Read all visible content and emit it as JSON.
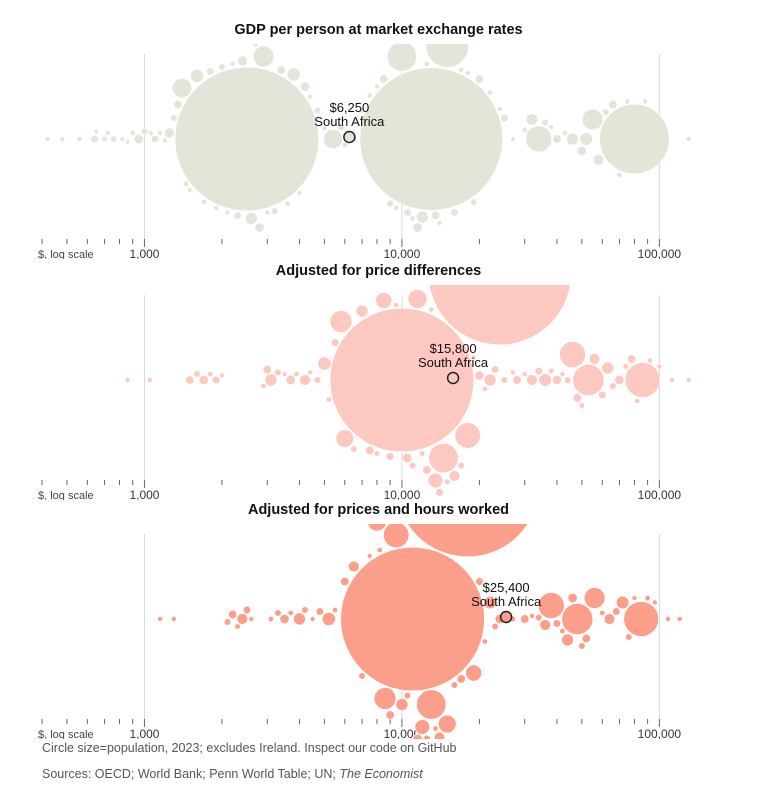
{
  "chart_data": [
    {
      "type": "scatter",
      "title": "GDP per person at market exchange rates",
      "xscale": "log",
      "xlim": [
        400,
        140000
      ],
      "xlabel": "$, log scale",
      "xticks": [
        1000,
        10000,
        100000
      ],
      "xtick_labels": [
        "1,000",
        "10,000",
        "100,000"
      ],
      "color": "#e5e4d9",
      "highlight": {
        "name": "South Africa",
        "value": 6250,
        "label": "$6,250"
      },
      "points": [
        {
          "x": 420,
          "p": 1
        },
        {
          "x": 480,
          "p": 0.5
        },
        {
          "x": 560,
          "p": 2
        },
        {
          "x": 640,
          "p": 4
        },
        {
          "x": 650,
          "p": 1.5
        },
        {
          "x": 700,
          "p": 2
        },
        {
          "x": 720,
          "p": 1
        },
        {
          "x": 760,
          "p": 3
        },
        {
          "x": 820,
          "p": 1
        },
        {
          "x": 860,
          "p": 1.5
        },
        {
          "x": 900,
          "p": 2
        },
        {
          "x": 950,
          "p": 6
        },
        {
          "x": 1000,
          "p": 3
        },
        {
          "x": 1060,
          "p": 1.5
        },
        {
          "x": 1100,
          "p": 4
        },
        {
          "x": 1150,
          "p": 2
        },
        {
          "x": 1200,
          "p": 1
        },
        {
          "x": 1250,
          "p": 7
        },
        {
          "x": 1300,
          "p": 3
        },
        {
          "x": 1350,
          "p": 5
        },
        {
          "x": 1400,
          "p": 26
        },
        {
          "x": 1450,
          "p": 2
        },
        {
          "x": 1500,
          "p": 1
        },
        {
          "x": 1600,
          "p": 12
        },
        {
          "x": 1700,
          "p": 2
        },
        {
          "x": 1800,
          "p": 4
        },
        {
          "x": 1900,
          "p": 1
        },
        {
          "x": 2000,
          "p": 3
        },
        {
          "x": 2100,
          "p": 1.5
        },
        {
          "x": 2200,
          "p": 2
        },
        {
          "x": 2300,
          "p": 4
        },
        {
          "x": 2400,
          "p": 7
        },
        {
          "x": 2500,
          "p": 1430
        },
        {
          "x": 2600,
          "p": 10
        },
        {
          "x": 2700,
          "p": 2
        },
        {
          "x": 2800,
          "p": 6
        },
        {
          "x": 2900,
          "p": 30
        },
        {
          "x": 3000,
          "p": 1
        },
        {
          "x": 3200,
          "p": 3
        },
        {
          "x": 3400,
          "p": 5
        },
        {
          "x": 3600,
          "p": 2
        },
        {
          "x": 3800,
          "p": 12
        },
        {
          "x": 4000,
          "p": 1.5
        },
        {
          "x": 4200,
          "p": 6
        },
        {
          "x": 4400,
          "p": 2
        },
        {
          "x": 4700,
          "p": 3
        },
        {
          "x": 5000,
          "p": 1
        },
        {
          "x": 5400,
          "p": 25
        },
        {
          "x": 5800,
          "p": 4
        },
        {
          "x": 6000,
          "p": 2
        },
        {
          "x": 6500,
          "p": 3
        },
        {
          "x": 7000,
          "p": 2
        },
        {
          "x": 7500,
          "p": 1
        },
        {
          "x": 8000,
          "p": 1.5
        },
        {
          "x": 8500,
          "p": 5
        },
        {
          "x": 9000,
          "p": 3
        },
        {
          "x": 9500,
          "p": 2
        },
        {
          "x": 10000,
          "p": 60
        },
        {
          "x": 10500,
          "p": 4
        },
        {
          "x": 11000,
          "p": 1
        },
        {
          "x": 11500,
          "p": 6
        },
        {
          "x": 12000,
          "p": 10
        },
        {
          "x": 12500,
          "p": 2
        },
        {
          "x": 13000,
          "p": 1410
        },
        {
          "x": 13500,
          "p": 5
        },
        {
          "x": 14000,
          "p": 1
        },
        {
          "x": 15000,
          "p": 127
        },
        {
          "x": 16000,
          "p": 4
        },
        {
          "x": 17000,
          "p": 2
        },
        {
          "x": 18000,
          "p": 1
        },
        {
          "x": 19000,
          "p": 3
        },
        {
          "x": 20000,
          "p": 5
        },
        {
          "x": 22000,
          "p": 2
        },
        {
          "x": 24000,
          "p": 1
        },
        {
          "x": 25000,
          "p": 4
        },
        {
          "x": 27000,
          "p": 1
        },
        {
          "x": 30000,
          "p": 2
        },
        {
          "x": 32000,
          "p": 9
        },
        {
          "x": 34000,
          "p": 47
        },
        {
          "x": 36000,
          "p": 3
        },
        {
          "x": 38000,
          "p": 1
        },
        {
          "x": 40000,
          "p": 5
        },
        {
          "x": 43000,
          "p": 2
        },
        {
          "x": 46000,
          "p": 10
        },
        {
          "x": 50000,
          "p": 6
        },
        {
          "x": 52000,
          "p": 11
        },
        {
          "x": 55000,
          "p": 30
        },
        {
          "x": 58000,
          "p": 8
        },
        {
          "x": 62000,
          "p": 3
        },
        {
          "x": 66000,
          "p": 5
        },
        {
          "x": 70000,
          "p": 2
        },
        {
          "x": 75000,
          "p": 1
        },
        {
          "x": 80000,
          "p": 335
        },
        {
          "x": 88000,
          "p": 1
        },
        {
          "x": 130000,
          "p": 0.6
        }
      ]
    },
    {
      "type": "scatter",
      "title": "Adjusted for price differences",
      "xscale": "log",
      "xlim": [
        400,
        140000
      ],
      "xlabel": "$, log scale",
      "xticks": [
        1000,
        10000,
        100000
      ],
      "xtick_labels": [
        "1,000",
        "10,000",
        "100,000"
      ],
      "color": "#fcc8bf",
      "highlight": {
        "name": "South Africa",
        "value": 15800,
        "label": "$15,800"
      },
      "points": [
        {
          "x": 860,
          "p": 1
        },
        {
          "x": 1050,
          "p": 0.8
        },
        {
          "x": 1500,
          "p": 5
        },
        {
          "x": 1600,
          "p": 3
        },
        {
          "x": 1700,
          "p": 6
        },
        {
          "x": 1800,
          "p": 2
        },
        {
          "x": 1900,
          "p": 4
        },
        {
          "x": 2000,
          "p": 1
        },
        {
          "x": 2900,
          "p": 2
        },
        {
          "x": 3000,
          "p": 5
        },
        {
          "x": 3100,
          "p": 10
        },
        {
          "x": 3300,
          "p": 3
        },
        {
          "x": 3500,
          "p": 1
        },
        {
          "x": 3700,
          "p": 6
        },
        {
          "x": 3900,
          "p": 2
        },
        {
          "x": 4200,
          "p": 8
        },
        {
          "x": 4400,
          "p": 1.5
        },
        {
          "x": 4700,
          "p": 3
        },
        {
          "x": 5000,
          "p": 12
        },
        {
          "x": 5200,
          "p": 2
        },
        {
          "x": 5500,
          "p": 4
        },
        {
          "x": 5800,
          "p": 33
        },
        {
          "x": 6000,
          "p": 22
        },
        {
          "x": 6500,
          "p": 3
        },
        {
          "x": 7000,
          "p": 10
        },
        {
          "x": 7500,
          "p": 5
        },
        {
          "x": 8000,
          "p": 2
        },
        {
          "x": 8500,
          "p": 18
        },
        {
          "x": 9000,
          "p": 4
        },
        {
          "x": 9500,
          "p": 1
        },
        {
          "x": 10000,
          "p": 1430
        },
        {
          "x": 10500,
          "p": 6
        },
        {
          "x": 11000,
          "p": 3
        },
        {
          "x": 11500,
          "p": 25
        },
        {
          "x": 12000,
          "p": 2
        },
        {
          "x": 12500,
          "p": 5
        },
        {
          "x": 13000,
          "p": 1
        },
        {
          "x": 13500,
          "p": 15
        },
        {
          "x": 14000,
          "p": 4
        },
        {
          "x": 14500,
          "p": 60
        },
        {
          "x": 15000,
          "p": 2
        },
        {
          "x": 16000,
          "p": 8
        },
        {
          "x": 17000,
          "p": 3
        },
        {
          "x": 18000,
          "p": 45
        },
        {
          "x": 19000,
          "p": 1
        },
        {
          "x": 20000,
          "p": 6
        },
        {
          "x": 21000,
          "p": 2
        },
        {
          "x": 22000,
          "p": 10
        },
        {
          "x": 23000,
          "p": 4
        },
        {
          "x": 24000,
          "p": 1410
        },
        {
          "x": 25000,
          "p": 3
        },
        {
          "x": 27000,
          "p": 1
        },
        {
          "x": 28000,
          "p": 5
        },
        {
          "x": 30000,
          "p": 2
        },
        {
          "x": 32000,
          "p": 8
        },
        {
          "x": 34000,
          "p": 4
        },
        {
          "x": 36000,
          "p": 11
        },
        {
          "x": 38000,
          "p": 2
        },
        {
          "x": 40000,
          "p": 6
        },
        {
          "x": 42000,
          "p": 1
        },
        {
          "x": 44000,
          "p": 3
        },
        {
          "x": 46000,
          "p": 47
        },
        {
          "x": 48000,
          "p": 5
        },
        {
          "x": 50000,
          "p": 2
        },
        {
          "x": 53000,
          "p": 67
        },
        {
          "x": 56000,
          "p": 8
        },
        {
          "x": 60000,
          "p": 4
        },
        {
          "x": 63000,
          "p": 10
        },
        {
          "x": 66000,
          "p": 3
        },
        {
          "x": 70000,
          "p": 6
        },
        {
          "x": 74000,
          "p": 2
        },
        {
          "x": 78000,
          "p": 5
        },
        {
          "x": 82000,
          "p": 1
        },
        {
          "x": 86000,
          "p": 84
        },
        {
          "x": 92000,
          "p": 1
        },
        {
          "x": 100000,
          "p": 0.8
        },
        {
          "x": 112000,
          "p": 0.6
        },
        {
          "x": 130000,
          "p": 0.6
        }
      ]
    },
    {
      "type": "scatter",
      "title": "Adjusted for prices and hours worked",
      "xscale": "log",
      "xlim": [
        400,
        140000
      ],
      "xlabel": "$, log scale",
      "xticks": [
        1000,
        10000,
        100000
      ],
      "xtick_labels": [
        "1,000",
        "10,000",
        "100,000"
      ],
      "color": "#fb9e8a",
      "highlight": {
        "name": "South Africa",
        "value": 25400,
        "label": "$25,400"
      },
      "points": [
        {
          "x": 1150,
          "p": 1
        },
        {
          "x": 1300,
          "p": 0.8
        },
        {
          "x": 2100,
          "p": 3
        },
        {
          "x": 2200,
          "p": 5
        },
        {
          "x": 2300,
          "p": 2
        },
        {
          "x": 2400,
          "p": 8
        },
        {
          "x": 2500,
          "p": 4
        },
        {
          "x": 2600,
          "p": 1
        },
        {
          "x": 3100,
          "p": 2
        },
        {
          "x": 3300,
          "p": 3
        },
        {
          "x": 3500,
          "p": 6
        },
        {
          "x": 3700,
          "p": 2
        },
        {
          "x": 4000,
          "p": 10
        },
        {
          "x": 4200,
          "p": 3
        },
        {
          "x": 4500,
          "p": 1
        },
        {
          "x": 4800,
          "p": 4
        },
        {
          "x": 5200,
          "p": 12
        },
        {
          "x": 5500,
          "p": 2
        },
        {
          "x": 6000,
          "p": 5
        },
        {
          "x": 6500,
          "p": 8
        },
        {
          "x": 7000,
          "p": 3
        },
        {
          "x": 7500,
          "p": 1
        },
        {
          "x": 8000,
          "p": 25
        },
        {
          "x": 8200,
          "p": 2
        },
        {
          "x": 8600,
          "p": 33
        },
        {
          "x": 9000,
          "p": 5
        },
        {
          "x": 9500,
          "p": 45
        },
        {
          "x": 10000,
          "p": 10
        },
        {
          "x": 10500,
          "p": 3
        },
        {
          "x": 11000,
          "p": 1430
        },
        {
          "x": 11500,
          "p": 6
        },
        {
          "x": 12000,
          "p": 15
        },
        {
          "x": 12500,
          "p": 4
        },
        {
          "x": 13000,
          "p": 60
        },
        {
          "x": 13500,
          "p": 2
        },
        {
          "x": 14000,
          "p": 8
        },
        {
          "x": 15000,
          "p": 22
        },
        {
          "x": 16000,
          "p": 3
        },
        {
          "x": 17000,
          "p": 5
        },
        {
          "x": 18000,
          "p": 1410
        },
        {
          "x": 19000,
          "p": 18
        },
        {
          "x": 20000,
          "p": 4
        },
        {
          "x": 21000,
          "p": 2
        },
        {
          "x": 22000,
          "p": 11
        },
        {
          "x": 23000,
          "p": 3
        },
        {
          "x": 24000,
          "p": 6
        },
        {
          "x": 27000,
          "p": 2
        },
        {
          "x": 30000,
          "p": 5
        },
        {
          "x": 32000,
          "p": 1
        },
        {
          "x": 34000,
          "p": 3
        },
        {
          "x": 36000,
          "p": 8
        },
        {
          "x": 38000,
          "p": 47
        },
        {
          "x": 40000,
          "p": 4
        },
        {
          "x": 42000,
          "p": 2
        },
        {
          "x": 44000,
          "p": 10
        },
        {
          "x": 46000,
          "p": 6
        },
        {
          "x": 48000,
          "p": 67
        },
        {
          "x": 50000,
          "p": 3
        },
        {
          "x": 52000,
          "p": 5
        },
        {
          "x": 56000,
          "p": 30
        },
        {
          "x": 60000,
          "p": 2
        },
        {
          "x": 64000,
          "p": 8
        },
        {
          "x": 68000,
          "p": 4
        },
        {
          "x": 72000,
          "p": 11
        },
        {
          "x": 76000,
          "p": 3
        },
        {
          "x": 80000,
          "p": 1
        },
        {
          "x": 85000,
          "p": 84
        },
        {
          "x": 90000,
          "p": 2
        },
        {
          "x": 96000,
          "p": 1
        },
        {
          "x": 108000,
          "p": 0.8
        },
        {
          "x": 120000,
          "p": 0.6
        }
      ]
    }
  ],
  "footer": {
    "note_text": "Circle size=population, 2023; excludes Ireland. Inspect our code on GitHub",
    "sources_prefix": "Sources: OECD; World Bank; Penn World Table; UN; ",
    "sources_italic": "The Economist"
  }
}
